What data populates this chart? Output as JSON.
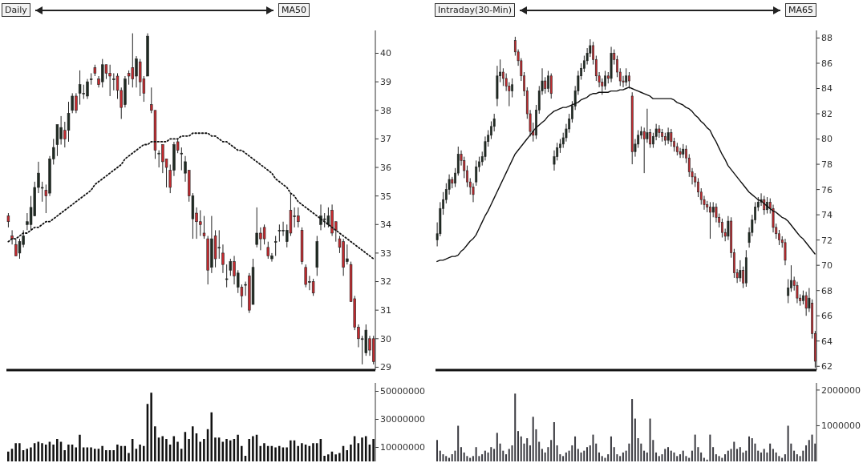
{
  "chart_data": [
    {
      "type": "candlestick",
      "title": "Daily",
      "legend": "top right",
      "tick_labels": "y",
      "ylim": [
        28.9,
        40.8
      ],
      "yticks": [
        29,
        30,
        31,
        32,
        33,
        34,
        35,
        36,
        37,
        38,
        39,
        40
      ],
      "categories": [
        null,
        null,
        null,
        null,
        null,
        null,
        null,
        null,
        null,
        null,
        null,
        null,
        null,
        null,
        null,
        null,
        null,
        null,
        null,
        null,
        null,
        null,
        null,
        null,
        null,
        null,
        null,
        null,
        null,
        null,
        null,
        null,
        null,
        null,
        null,
        null,
        null,
        null,
        null,
        null,
        null,
        null,
        null,
        null,
        null,
        null,
        null,
        null,
        null,
        null,
        null,
        null,
        null,
        null,
        null,
        null,
        null,
        null,
        null,
        null,
        null,
        null,
        null,
        null,
        null,
        null,
        null,
        null,
        null,
        null,
        null,
        null,
        null,
        null,
        null,
        null,
        null,
        null,
        null,
        null,
        null,
        null,
        null,
        null,
        null,
        null,
        null,
        null,
        null,
        null,
        null,
        null,
        null,
        null,
        null,
        null,
        null,
        null
      ],
      "ohlc": [
        [
          34.3,
          34.4,
          33.9,
          34.1
        ],
        [
          33.6,
          33.8,
          33.3,
          33.5
        ],
        [
          33.3,
          33.5,
          32.9,
          32.9
        ],
        [
          33.0,
          33.5,
          32.8,
          33.4
        ],
        [
          33.3,
          33.8,
          33.2,
          33.6
        ],
        [
          34.0,
          34.4,
          33.8,
          34.1
        ],
        [
          34.0,
          35.0,
          33.8,
          34.6
        ],
        [
          34.3,
          35.5,
          34.3,
          35.3
        ],
        [
          35.3,
          36.2,
          35.1,
          35.8
        ],
        [
          35.3,
          35.5,
          34.8,
          35.3
        ],
        [
          35.2,
          35.4,
          34.4,
          35.0
        ],
        [
          35.1,
          36.4,
          35.0,
          36.3
        ],
        [
          36.3,
          37.0,
          36.1,
          36.7
        ],
        [
          36.8,
          37.5,
          36.4,
          37.5
        ],
        [
          37.0,
          37.8,
          36.8,
          37.4
        ],
        [
          37.3,
          37.6,
          36.7,
          37.0
        ],
        [
          37.3,
          38.3,
          36.9,
          37.9
        ],
        [
          38.0,
          38.6,
          37.9,
          38.5
        ],
        [
          38.5,
          38.6,
          37.9,
          38.0
        ],
        [
          38.6,
          39.4,
          38.2,
          38.9
        ],
        [
          38.6,
          38.9,
          38.4,
          38.6
        ],
        [
          38.5,
          39.1,
          38.4,
          39.0
        ],
        [
          39.1,
          39.3,
          38.9,
          39.1
        ],
        [
          39.5,
          39.6,
          39.2,
          39.3
        ],
        [
          39.1,
          39.2,
          38.8,
          38.9
        ],
        [
          39.0,
          39.8,
          38.8,
          39.6
        ],
        [
          39.6,
          39.6,
          39.1,
          39.3
        ],
        [
          39.3,
          39.6,
          38.5,
          39.2
        ],
        [
          39.1,
          39.3,
          38.7,
          39.1
        ],
        [
          39.2,
          39.3,
          38.4,
          38.7
        ],
        [
          38.7,
          38.8,
          37.7,
          38.1
        ],
        [
          38.2,
          39.2,
          38.1,
          39.1
        ],
        [
          39.3,
          39.4,
          38.9,
          39.2
        ],
        [
          39.5,
          40.7,
          38.8,
          39.1
        ],
        [
          39.2,
          39.9,
          38.8,
          39.8
        ],
        [
          39.7,
          39.8,
          38.5,
          39.0
        ],
        [
          39.1,
          39.2,
          38.3,
          38.6
        ],
        [
          39.2,
          40.7,
          39.2,
          40.6
        ],
        [
          38.2,
          38.8,
          37.9,
          38.0
        ],
        [
          38.0,
          38.0,
          36.3,
          36.6
        ],
        [
          36.5,
          36.6,
          36.0,
          36.5
        ],
        [
          36.8,
          36.8,
          35.8,
          36.2
        ],
        [
          36.3,
          36.3,
          35.3,
          36.0
        ],
        [
          35.9,
          36.1,
          35.1,
          35.3
        ],
        [
          35.9,
          36.9,
          35.7,
          36.8
        ],
        [
          36.9,
          37.0,
          36.5,
          36.6
        ],
        [
          36.5,
          36.7,
          35.9,
          36.5
        ],
        [
          35.8,
          36.4,
          35.5,
          36.2
        ],
        [
          35.9,
          35.9,
          34.8,
          35.0
        ],
        [
          34.2,
          35.1,
          33.5,
          35.0
        ],
        [
          34.4,
          34.6,
          33.5,
          34.1
        ],
        [
          34.1,
          34.5,
          33.6,
          34.0
        ],
        [
          33.7,
          34.3,
          33.5,
          33.6
        ],
        [
          33.5,
          33.6,
          31.9,
          32.4
        ],
        [
          32.5,
          34.3,
          32.3,
          33.5
        ],
        [
          33.6,
          33.8,
          32.5,
          32.8
        ],
        [
          33.2,
          33.8,
          32.8,
          33.2
        ],
        [
          33.0,
          33.3,
          32.3,
          32.6
        ],
        [
          32.1,
          32.6,
          31.8,
          32.1
        ],
        [
          32.4,
          32.8,
          32.2,
          32.7
        ],
        [
          32.7,
          32.9,
          31.9,
          32.2
        ],
        [
          31.8,
          32.4,
          31.6,
          32.3
        ],
        [
          31.8,
          31.9,
          31.1,
          31.5
        ],
        [
          31.9,
          32.0,
          31.5,
          31.9
        ],
        [
          32.2,
          32.3,
          30.9,
          31.0
        ],
        [
          31.2,
          32.8,
          31.2,
          32.5
        ],
        [
          33.3,
          34.6,
          33.2,
          33.7
        ],
        [
          33.7,
          33.9,
          33.1,
          33.5
        ],
        [
          33.9,
          34.0,
          33.3,
          33.5
        ],
        [
          33.2,
          33.4,
          32.8,
          32.9
        ],
        [
          32.8,
          33.0,
          32.7,
          32.9
        ],
        [
          33.4,
          33.6,
          32.9,
          33.4
        ],
        [
          33.8,
          34.0,
          33.4,
          33.8
        ],
        [
          33.8,
          34.1,
          33.6,
          33.8
        ],
        [
          33.4,
          34.0,
          33.2,
          33.8
        ],
        [
          34.5,
          35.1,
          33.6,
          33.7
        ],
        [
          34.3,
          34.6,
          33.9,
          34.3
        ],
        [
          34.3,
          34.6,
          33.9,
          34.1
        ],
        [
          33.8,
          33.9,
          32.6,
          32.7
        ],
        [
          32.5,
          32.6,
          31.8,
          31.9
        ],
        [
          32.0,
          32.2,
          31.7,
          32.0
        ],
        [
          32.0,
          32.1,
          31.5,
          31.6
        ],
        [
          32.5,
          33.6,
          32.2,
          33.4
        ],
        [
          34.0,
          34.7,
          33.8,
          34.3
        ],
        [
          34.2,
          34.4,
          33.9,
          34.2
        ],
        [
          34.0,
          34.6,
          33.9,
          34.3
        ],
        [
          34.5,
          34.7,
          33.6,
          33.7
        ],
        [
          34.1,
          34.1,
          33.4,
          33.8
        ],
        [
          33.5,
          33.6,
          33.0,
          33.2
        ],
        [
          33.4,
          33.5,
          32.2,
          32.5
        ],
        [
          32.7,
          33.3,
          32.6,
          32.8
        ],
        [
          32.6,
          32.7,
          31.3,
          31.3
        ],
        [
          31.4,
          31.5,
          30.3,
          30.4
        ],
        [
          30.4,
          30.5,
          29.7,
          30.0
        ],
        [
          30.0,
          30.1,
          29.1,
          30.0
        ],
        [
          29.5,
          30.5,
          29.4,
          30.3
        ],
        [
          30.0,
          30.1,
          29.4,
          29.6
        ],
        [
          30.0,
          30.1,
          29.1,
          29.2
        ]
      ],
      "colors": [
        "#c62a2f",
        "#c62a2f",
        "#c62a2f",
        "#1e2b22",
        "#1e2b22",
        "#1e2b22",
        "#1e2b22",
        "#1e2b22",
        "#1e2b22",
        "#1e2b22",
        "#c62a2f",
        "#1e2b22",
        "#1e2b22",
        "#1e2b22",
        "#1e2b22",
        "#c62a2f",
        "#1e2b22",
        "#1e2b22",
        "#c62a2f",
        "#1e2b22",
        "#1e2b22",
        "#1e2b22",
        "#1e2b22",
        "#c62a2f",
        "#c62a2f",
        "#1e2b22",
        "#c62a2f",
        "#c62a2f",
        "#1e2b22",
        "#c62a2f",
        "#c62a2f",
        "#1e2b22",
        "#c62a2f",
        "#c62a2f",
        "#1e2b22",
        "#c62a2f",
        "#c62a2f",
        "#1e2b22",
        "#c62a2f",
        "#c62a2f",
        "#1e2b22",
        "#c62a2f",
        "#c62a2f",
        "#c62a2f",
        "#1e2b22",
        "#c62a2f",
        "#1e2b22",
        "#1e2b22",
        "#c62a2f",
        "#1e2b22",
        "#c62a2f",
        "#c62a2f",
        "#c62a2f",
        "#c62a2f",
        "#1e2b22",
        "#c62a2f",
        "#1e2b22",
        "#c62a2f",
        "#1e2b22",
        "#1e2b22",
        "#c62a2f",
        "#1e2b22",
        "#c62a2f",
        "#1e2b22",
        "#c62a2f",
        "#1e2b22",
        "#1e2b22",
        "#c62a2f",
        "#c62a2f",
        "#c62a2f",
        "#1e2b22",
        "#1e2b22",
        "#1e2b22",
        "#1e2b22",
        "#1e2b22",
        "#c62a2f",
        "#1e2b22",
        "#c62a2f",
        "#c62a2f",
        "#c62a2f",
        "#1e2b22",
        "#c62a2f",
        "#1e2b22",
        "#1e2b22",
        "#1e2b22",
        "#1e2b22",
        "#c62a2f",
        "#c62a2f",
        "#c62a2f",
        "#c62a2f",
        "#1e2b22",
        "#c62a2f",
        "#c62a2f",
        "#c62a2f",
        "#1e2b22",
        "#1e2b22",
        "#c62a2f",
        "#c62a2f"
      ],
      "series": [
        {
          "type": "line",
          "name": "MA50",
          "color": "#111111",
          "line_style": "dotted",
          "values": [
            33.4,
            33.5,
            33.5,
            33.6,
            33.7,
            33.7,
            33.8,
            33.9,
            33.9,
            34.0,
            34.1,
            34.1,
            34.2,
            34.3,
            34.4,
            34.5,
            34.6,
            34.7,
            34.8,
            34.9,
            35.0,
            35.1,
            35.2,
            35.4,
            35.5,
            35.6,
            35.7,
            35.8,
            35.9,
            36.0,
            36.1,
            36.3,
            36.4,
            36.5,
            36.6,
            36.7,
            36.8,
            36.8,
            36.9,
            36.9,
            36.9,
            36.9,
            36.9,
            37.0,
            37.0,
            37.0,
            37.1,
            37.1,
            37.1,
            37.2,
            37.2,
            37.2,
            37.2,
            37.2,
            37.1,
            37.1,
            37.0,
            36.9,
            36.9,
            36.8,
            36.7,
            36.6,
            36.6,
            36.5,
            36.4,
            36.3,
            36.2,
            36.1,
            36.0,
            35.9,
            35.8,
            35.6,
            35.5,
            35.4,
            35.3,
            35.1,
            35.0,
            34.8,
            34.7,
            34.6,
            34.5,
            34.4,
            34.3,
            34.2,
            34.1,
            34.0,
            33.9,
            33.8,
            33.7,
            33.6,
            33.5,
            33.4,
            33.3,
            33.2,
            33.1,
            33.0,
            32.9,
            32.8
          ]
        }
      ]
    },
    {
      "type": "candlestick",
      "title": "Intraday(30-Min)",
      "legend": "top right",
      "tick_labels": "y",
      "ylim": [
        61.7,
        88.6
      ],
      "yticks": [
        62,
        64,
        66,
        68,
        70,
        72,
        74,
        76,
        78,
        80,
        82,
        84,
        86,
        88
      ],
      "categories": [
        null,
        null,
        null,
        null,
        null,
        null,
        null,
        null,
        null,
        null,
        null,
        null,
        null,
        null,
        null,
        null,
        null,
        null,
        null,
        null,
        null,
        null,
        null,
        null,
        null,
        null,
        null,
        null,
        null,
        null,
        null,
        null,
        null,
        null,
        null,
        null,
        null,
        null,
        null,
        null,
        null,
        null,
        null,
        null,
        null,
        null,
        null,
        null,
        null,
        null,
        null,
        null,
        null,
        null,
        null,
        null,
        null,
        null,
        null,
        null,
        null,
        null,
        null,
        null,
        null,
        null,
        null,
        null,
        null,
        null,
        null,
        null,
        null,
        null,
        null,
        null,
        null,
        null,
        null,
        null,
        null,
        null,
        null,
        null,
        null,
        null,
        null,
        null,
        null,
        null,
        null,
        null,
        null,
        null,
        null,
        null,
        null,
        null,
        null,
        null,
        null,
        null,
        null,
        null,
        null,
        null,
        null,
        null,
        null,
        null,
        null,
        null,
        null,
        null,
        null,
        null,
        null,
        null,
        null,
        null,
        null,
        null,
        null,
        null,
        null,
        null,
        null
      ],
      "ohlc": [
        [
          72.0,
          73.4,
          71.5,
          72.5
        ],
        [
          72.5,
          75.0,
          72.3,
          74.5
        ],
        [
          74.5,
          75.8,
          74.0,
          75.2
        ],
        [
          75.2,
          76.5,
          74.9,
          76.0
        ],
        [
          76.0,
          77.2,
          75.6,
          76.8
        ],
        [
          76.8,
          77.0,
          76.1,
          76.5
        ],
        [
          76.5,
          77.7,
          76.2,
          77.3
        ],
        [
          77.3,
          79.4,
          77.1,
          78.8
        ],
        [
          78.8,
          79.1,
          77.9,
          78.3
        ],
        [
          78.3,
          78.6,
          76.9,
          77.5
        ],
        [
          77.5,
          77.9,
          76.2,
          76.6
        ],
        [
          76.6,
          76.9,
          75.6,
          76.2
        ],
        [
          76.2,
          76.5,
          75.0,
          75.6
        ],
        [
          76.6,
          78.3,
          76.3,
          77.8
        ],
        [
          77.8,
          78.6,
          77.4,
          78.2
        ],
        [
          78.2,
          79.0,
          77.9,
          78.6
        ],
        [
          78.6,
          80.2,
          78.3,
          79.8
        ],
        [
          79.8,
          80.7,
          79.4,
          80.3
        ],
        [
          80.3,
          81.4,
          80.0,
          81.0
        ],
        [
          81.0,
          82.0,
          80.6,
          81.6
        ],
        [
          83.2,
          85.8,
          82.6,
          85.0
        ],
        [
          85.0,
          86.3,
          84.5,
          85.3
        ],
        [
          85.3,
          85.6,
          84.2,
          84.8
        ],
        [
          84.8,
          85.2,
          83.8,
          84.2
        ],
        [
          84.2,
          84.5,
          82.6,
          83.8
        ],
        [
          83.8,
          84.8,
          83.3,
          84.3
        ],
        [
          87.8,
          88.1,
          86.6,
          86.9
        ],
        [
          86.9,
          87.1,
          85.8,
          86.2
        ],
        [
          86.2,
          86.4,
          84.6,
          85.0
        ],
        [
          85.0,
          85.3,
          83.4,
          83.8
        ],
        [
          83.8,
          84.1,
          81.6,
          82.0
        ],
        [
          82.0,
          82.3,
          80.2,
          80.6
        ],
        [
          80.6,
          81.3,
          79.8,
          80.3
        ],
        [
          80.3,
          82.7,
          80.0,
          82.3
        ],
        [
          82.3,
          84.2,
          82.0,
          83.8
        ],
        [
          83.8,
          85.6,
          83.5,
          84.6
        ],
        [
          84.6,
          84.9,
          83.6,
          84.0
        ],
        [
          84.0,
          85.4,
          83.7,
          85.0
        ],
        [
          85.0,
          85.2,
          83.2,
          83.6
        ],
        [
          78.0,
          79.1,
          77.5,
          78.6
        ],
        [
          78.6,
          79.7,
          78.3,
          79.3
        ],
        [
          79.3,
          80.0,
          78.9,
          79.6
        ],
        [
          79.6,
          80.5,
          79.3,
          80.1
        ],
        [
          80.1,
          81.2,
          79.8,
          80.8
        ],
        [
          80.8,
          82.0,
          80.5,
          81.6
        ],
        [
          81.6,
          83.0,
          81.3,
          82.6
        ],
        [
          82.6,
          84.2,
          82.3,
          83.8
        ],
        [
          83.8,
          85.4,
          83.5,
          85.0
        ],
        [
          85.0,
          86.0,
          84.7,
          85.6
        ],
        [
          85.6,
          86.6,
          85.3,
          86.2
        ],
        [
          86.2,
          87.2,
          85.9,
          86.8
        ],
        [
          86.8,
          87.9,
          86.5,
          87.4
        ],
        [
          87.4,
          87.7,
          85.9,
          86.3
        ],
        [
          86.3,
          86.6,
          84.6,
          85.0
        ],
        [
          85.0,
          85.3,
          84.1,
          84.5
        ],
        [
          84.5,
          84.8,
          83.5,
          84.2
        ],
        [
          84.2,
          85.4,
          83.9,
          85.0
        ],
        [
          85.0,
          85.3,
          84.4,
          84.8
        ],
        [
          84.8,
          87.3,
          84.5,
          86.8
        ],
        [
          86.8,
          87.1,
          85.9,
          86.3
        ],
        [
          86.3,
          86.6,
          84.9,
          85.3
        ],
        [
          85.3,
          85.6,
          84.2,
          84.6
        ],
        [
          84.6,
          85.0,
          84.1,
          84.5
        ],
        [
          84.5,
          85.6,
          84.2,
          85.0
        ],
        [
          85.0,
          85.3,
          84.0,
          84.6
        ],
        [
          83.4,
          83.7,
          78.0,
          79.0
        ],
        [
          79.0,
          80.0,
          78.6,
          79.6
        ],
        [
          79.6,
          80.7,
          79.3,
          80.3
        ],
        [
          80.3,
          81.0,
          80.0,
          80.6
        ],
        [
          80.6,
          80.9,
          77.3,
          80.0
        ],
        [
          80.0,
          82.4,
          79.7,
          80.5
        ],
        [
          80.5,
          80.8,
          79.3,
          79.6
        ],
        [
          79.6,
          80.5,
          79.3,
          80.2
        ],
        [
          80.2,
          81.2,
          79.9,
          80.8
        ],
        [
          80.8,
          81.1,
          80.1,
          80.5
        ],
        [
          80.5,
          80.8,
          79.8,
          80.2
        ],
        [
          80.2,
          80.5,
          79.5,
          79.9
        ],
        [
          79.9,
          80.9,
          79.6,
          80.5
        ],
        [
          80.5,
          80.8,
          79.4,
          79.8
        ],
        [
          79.8,
          80.1,
          79.0,
          79.4
        ],
        [
          79.4,
          79.7,
          78.7,
          79.0
        ],
        [
          79.0,
          79.3,
          78.5,
          78.8
        ],
        [
          78.8,
          79.6,
          78.5,
          79.2
        ],
        [
          79.2,
          79.5,
          78.1,
          78.5
        ],
        [
          78.5,
          78.8,
          77.0,
          77.4
        ],
        [
          77.4,
          77.7,
          76.4,
          77.0
        ],
        [
          77.0,
          77.3,
          76.2,
          76.6
        ],
        [
          76.6,
          76.9,
          75.4,
          75.8
        ],
        [
          75.8,
          76.1,
          74.8,
          75.2
        ],
        [
          75.2,
          75.5,
          74.4,
          74.8
        ],
        [
          74.8,
          75.1,
          74.2,
          74.6
        ],
        [
          74.6,
          75.0,
          72.1,
          74.2
        ],
        [
          74.2,
          75.0,
          73.8,
          74.6
        ],
        [
          74.6,
          74.9,
          73.4,
          73.8
        ],
        [
          73.8,
          74.1,
          73.0,
          73.4
        ],
        [
          73.4,
          73.7,
          72.2,
          72.6
        ],
        [
          72.6,
          72.9,
          71.9,
          72.3
        ],
        [
          72.3,
          73.9,
          72.0,
          73.5
        ],
        [
          73.5,
          73.8,
          70.6,
          71.0
        ],
        [
          71.0,
          71.3,
          69.0,
          69.4
        ],
        [
          69.4,
          69.7,
          68.6,
          69.0
        ],
        [
          69.0,
          70.4,
          68.7,
          69.6
        ],
        [
          69.6,
          69.9,
          68.2,
          68.6
        ],
        [
          68.6,
          71.2,
          68.3,
          70.6
        ],
        [
          71.8,
          73.0,
          71.4,
          72.6
        ],
        [
          72.6,
          74.0,
          72.3,
          73.6
        ],
        [
          73.6,
          75.0,
          73.3,
          74.6
        ],
        [
          74.6,
          75.4,
          74.3,
          75.0
        ],
        [
          75.0,
          75.7,
          74.7,
          75.2
        ],
        [
          75.2,
          75.5,
          74.0,
          74.4
        ],
        [
          74.4,
          75.4,
          74.1,
          75.0
        ],
        [
          75.0,
          75.3,
          74.1,
          74.5
        ],
        [
          74.5,
          74.8,
          72.6,
          73.0
        ],
        [
          73.0,
          73.3,
          72.1,
          72.5
        ],
        [
          72.5,
          72.8,
          71.6,
          72.0
        ],
        [
          72.0,
          72.3,
          71.4,
          71.8
        ],
        [
          71.8,
          72.1,
          70.0,
          70.4
        ],
        [
          67.6,
          68.9,
          67.0,
          68.2
        ],
        [
          68.2,
          70.0,
          67.9,
          68.8
        ],
        [
          68.8,
          69.1,
          68.0,
          68.4
        ],
        [
          68.4,
          68.7,
          67.0,
          67.4
        ],
        [
          67.4,
          67.7,
          66.8,
          67.2
        ],
        [
          67.2,
          68.0,
          66.9,
          67.6
        ],
        [
          67.6,
          67.9,
          66.0,
          66.6
        ],
        [
          66.6,
          68.2,
          66.3,
          67.4
        ],
        [
          67.0,
          67.3,
          64.2,
          64.6
        ],
        [
          64.6,
          64.8,
          61.9,
          62.4
        ]
      ],
      "colors": [
        "#1e2b22",
        "#1e2b22",
        "#1e2b22",
        "#1e2b22",
        "#1e2b22",
        "#c62a2f",
        "#1e2b22",
        "#1e2b22",
        "#c62a2f",
        "#c62a2f",
        "#c62a2f",
        "#c62a2f",
        "#c62a2f",
        "#1e2b22",
        "#1e2b22",
        "#1e2b22",
        "#1e2b22",
        "#1e2b22",
        "#1e2b22",
        "#1e2b22",
        "#1e2b22",
        "#1e2b22",
        "#c62a2f",
        "#c62a2f",
        "#c62a2f",
        "#1e2b22",
        "#c62a2f",
        "#c62a2f",
        "#c62a2f",
        "#c62a2f",
        "#c62a2f",
        "#c62a2f",
        "#c62a2f",
        "#1e2b22",
        "#1e2b22",
        "#1e2b22",
        "#c62a2f",
        "#1e2b22",
        "#c62a2f",
        "#1e2b22",
        "#1e2b22",
        "#1e2b22",
        "#1e2b22",
        "#1e2b22",
        "#1e2b22",
        "#1e2b22",
        "#1e2b22",
        "#1e2b22",
        "#1e2b22",
        "#1e2b22",
        "#1e2b22",
        "#1e2b22",
        "#c62a2f",
        "#c62a2f",
        "#c62a2f",
        "#c62a2f",
        "#1e2b22",
        "#c62a2f",
        "#1e2b22",
        "#c62a2f",
        "#c62a2f",
        "#c62a2f",
        "#c62a2f",
        "#1e2b22",
        "#c62a2f",
        "#c62a2f",
        "#1e2b22",
        "#1e2b22",
        "#1e2b22",
        "#c62a2f",
        "#1e2b22",
        "#c62a2f",
        "#1e2b22",
        "#1e2b22",
        "#c62a2f",
        "#c62a2f",
        "#c62a2f",
        "#1e2b22",
        "#c62a2f",
        "#c62a2f",
        "#c62a2f",
        "#c62a2f",
        "#1e2b22",
        "#c62a2f",
        "#c62a2f",
        "#c62a2f",
        "#c62a2f",
        "#c62a2f",
        "#c62a2f",
        "#c62a2f",
        "#c62a2f",
        "#c62a2f",
        "#1e2b22",
        "#c62a2f",
        "#c62a2f",
        "#c62a2f",
        "#c62a2f",
        "#1e2b22",
        "#c62a2f",
        "#c62a2f",
        "#c62a2f",
        "#1e2b22",
        "#c62a2f",
        "#1e2b22",
        "#1e2b22",
        "#1e2b22",
        "#1e2b22",
        "#1e2b22",
        "#1e2b22",
        "#c62a2f",
        "#1e2b22",
        "#c62a2f",
        "#c62a2f",
        "#c62a2f",
        "#c62a2f",
        "#c62a2f",
        "#c62a2f",
        "#1e2b22",
        "#1e2b22",
        "#c62a2f",
        "#c62a2f",
        "#c62a2f",
        "#1e2b22",
        "#c62a2f",
        "#1e2b22",
        "#c62a2f",
        "#c62a2f"
      ],
      "series": [
        {
          "type": "line",
          "name": "MA65",
          "color": "#111111",
          "line_style": "solid",
          "values": [
            70.3,
            70.4,
            70.4,
            70.5,
            70.6,
            70.7,
            70.7,
            70.8,
            71.1,
            71.3,
            71.6,
            71.9,
            72.1,
            72.4,
            72.9,
            73.4,
            73.9,
            74.3,
            74.8,
            75.3,
            75.8,
            76.3,
            76.8,
            77.3,
            77.8,
            78.3,
            78.8,
            79.1,
            79.4,
            79.7,
            80.0,
            80.3,
            80.6,
            80.9,
            81.1,
            81.3,
            81.5,
            81.8,
            82.0,
            82.2,
            82.3,
            82.4,
            82.5,
            82.5,
            82.6,
            82.7,
            82.8,
            82.9,
            83.1,
            83.2,
            83.3,
            83.5,
            83.6,
            83.6,
            83.7,
            83.7,
            83.7,
            83.7,
            83.8,
            83.8,
            83.8,
            83.9,
            83.9,
            84.0,
            84.1,
            84.0,
            83.9,
            83.8,
            83.7,
            83.6,
            83.5,
            83.4,
            83.2,
            83.2,
            83.2,
            83.2,
            83.2,
            83.2,
            83.2,
            83.1,
            82.9,
            82.8,
            82.7,
            82.5,
            82.4,
            82.2,
            81.9,
            81.7,
            81.4,
            81.2,
            80.9,
            80.7,
            80.2,
            79.8,
            79.3,
            78.8,
            78.4,
            77.9,
            77.6,
            77.3,
            77.0,
            76.7,
            76.4,
            76.1,
            75.8,
            75.6,
            75.4,
            75.2,
            75.1,
            74.9,
            74.7,
            74.5,
            74.3,
            74.2,
            74.0,
            73.8,
            73.7,
            73.5,
            73.2,
            72.9,
            72.6,
            72.3,
            72.1,
            71.8,
            71.5,
            71.2,
            70.9
          ]
        }
      ]
    },
    {
      "type": "bar",
      "tick_labels": "y",
      "color": "#111111",
      "ylim": [
        0,
        56000000
      ],
      "yticks": [
        10000000,
        30000000,
        50000000
      ],
      "categories": [
        null,
        null,
        null,
        null,
        null,
        null,
        null,
        null,
        null,
        null,
        null,
        null,
        null,
        null,
        null,
        null,
        null,
        null,
        null,
        null,
        null,
        null,
        null,
        null,
        null,
        null,
        null,
        null,
        null,
        null,
        null,
        null,
        null,
        null,
        null,
        null,
        null,
        null,
        null,
        null,
        null,
        null,
        null,
        null,
        null,
        null,
        null,
        null,
        null,
        null,
        null,
        null,
        null,
        null,
        null,
        null,
        null,
        null,
        null,
        null,
        null,
        null,
        null,
        null,
        null,
        null,
        null,
        null,
        null,
        null,
        null,
        null,
        null,
        null,
        null,
        null,
        null,
        null,
        null,
        null,
        null,
        null,
        null,
        null,
        null,
        null,
        null,
        null,
        null,
        null,
        null,
        null,
        null,
        null,
        null,
        null,
        null,
        null
      ],
      "values": [
        7000000,
        9000000,
        13000000,
        13000000,
        8000000,
        9000000,
        10000000,
        13000000,
        14000000,
        13000000,
        12000000,
        14000000,
        12000000,
        16000000,
        14000000,
        8000000,
        12000000,
        12000000,
        10000000,
        19000000,
        10000000,
        10000000,
        10000000,
        9000000,
        9000000,
        11000000,
        8000000,
        8000000,
        8000000,
        12000000,
        11000000,
        11000000,
        6000000,
        16000000,
        9000000,
        12000000,
        11000000,
        41000000,
        49000000,
        25000000,
        17000000,
        18000000,
        16000000,
        12000000,
        18000000,
        14000000,
        9000000,
        21000000,
        16000000,
        25000000,
        20000000,
        14000000,
        16000000,
        23000000,
        35000000,
        17000000,
        17000000,
        14000000,
        16000000,
        15000000,
        16000000,
        19000000,
        11000000,
        4000000,
        16000000,
        18000000,
        19000000,
        11000000,
        13000000,
        11000000,
        11000000,
        10000000,
        11000000,
        10000000,
        10000000,
        15000000,
        15000000,
        11000000,
        13000000,
        12000000,
        11000000,
        13000000,
        13000000,
        16000000,
        4000000,
        5000000,
        7000000,
        5000000,
        6000000,
        11000000,
        8000000,
        12000000,
        18000000,
        13000000,
        17000000,
        18000000,
        12000000,
        16000000
      ]
    },
    {
      "type": "bar",
      "tick_labels": "y",
      "color": "#3a3a40",
      "ylim": [
        0,
        2200000
      ],
      "yticks": [
        1000000,
        2000000
      ],
      "categories": [
        null,
        null,
        null,
        null,
        null,
        null,
        null,
        null,
        null,
        null,
        null,
        null,
        null,
        null,
        null,
        null,
        null,
        null,
        null,
        null,
        null,
        null,
        null,
        null,
        null,
        null,
        null,
        null,
        null,
        null,
        null,
        null,
        null,
        null,
        null,
        null,
        null,
        null,
        null,
        null,
        null,
        null,
        null,
        null,
        null,
        null,
        null,
        null,
        null,
        null,
        null,
        null,
        null,
        null,
        null,
        null,
        null,
        null,
        null,
        null,
        null,
        null,
        null,
        null,
        null,
        null,
        null,
        null,
        null,
        null,
        null,
        null,
        null,
        null,
        null,
        null,
        null,
        null,
        null,
        null,
        null,
        null,
        null,
        null,
        null,
        null,
        null,
        null,
        null,
        null,
        null,
        null,
        null,
        null,
        null,
        null,
        null,
        null,
        null,
        null,
        null,
        null,
        null,
        null,
        null,
        null,
        null,
        null,
        null,
        null,
        null,
        null,
        null,
        null,
        null,
        null,
        null,
        null,
        null,
        null,
        null,
        null,
        null,
        null,
        null,
        null,
        null
      ],
      "values": [
        600000,
        300000,
        200000,
        150000,
        100000,
        200000,
        300000,
        1000000,
        400000,
        250000,
        150000,
        100000,
        150000,
        400000,
        150000,
        200000,
        300000,
        250000,
        400000,
        350000,
        800000,
        500000,
        300000,
        200000,
        350000,
        450000,
        1900000,
        850000,
        700000,
        500000,
        650000,
        450000,
        1250000,
        900000,
        550000,
        350000,
        250000,
        400000,
        600000,
        1100000,
        450000,
        200000,
        150000,
        250000,
        300000,
        450000,
        700000,
        350000,
        250000,
        300000,
        400000,
        450000,
        750000,
        500000,
        250000,
        150000,
        100000,
        200000,
        700000,
        400000,
        200000,
        150000,
        250000,
        300000,
        500000,
        1750000,
        1200000,
        650000,
        500000,
        300000,
        250000,
        1200000,
        600000,
        250000,
        150000,
        200000,
        350000,
        400000,
        300000,
        250000,
        150000,
        200000,
        300000,
        150000,
        100000,
        300000,
        750000,
        400000,
        250000,
        100000,
        50000,
        750000,
        400000,
        200000,
        150000,
        100000,
        200000,
        300000,
        350000,
        550000,
        350000,
        400000,
        250000,
        300000,
        700000,
        650000,
        500000,
        300000,
        250000,
        350000,
        250000,
        500000,
        350000,
        250000,
        150000,
        100000,
        200000,
        1000000,
        500000,
        300000,
        200000,
        150000,
        300000,
        450000,
        600000,
        750000,
        500000
      ]
    }
  ]
}
